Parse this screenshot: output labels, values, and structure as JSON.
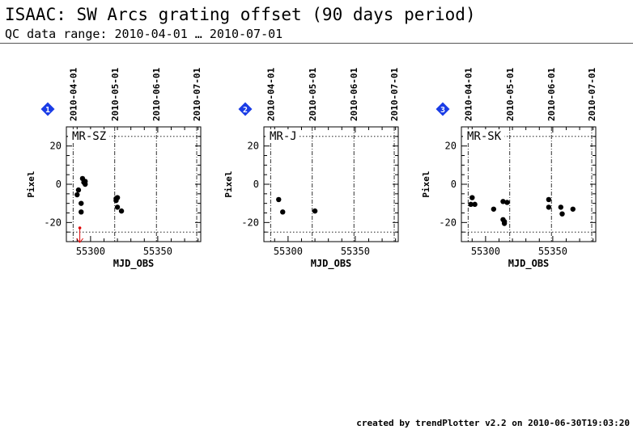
{
  "header": {
    "title": "ISAAC: SW Arcs grating offset (90 days period)",
    "subtitle": "QC data range: 2010-04-01 … 2010-07-01"
  },
  "footer": "created by trendPlotter v2.2 on 2010-06-30T19:03:20",
  "colors": {
    "marker_badge": "#1a3ce6",
    "outlier": "#dd0000",
    "points": "#000000"
  },
  "chart_data": [
    {
      "type": "scatter",
      "index_label": "1",
      "panel_label": "MR-SZ",
      "xlabel": "MJD_OBS",
      "ylabel": "Pixel",
      "xlim": [
        55282,
        55382
      ],
      "ylim": [
        -30,
        30
      ],
      "x_ticks": [
        "55300",
        "55350"
      ],
      "y_ticks": [
        "20",
        "0",
        "-20"
      ],
      "top_date_labels": [
        "2010-04-01",
        "2010-05-01",
        "2010-06-01",
        "2010-07-01"
      ],
      "date_vlines": [
        55287,
        55318,
        55349,
        55379
      ],
      "ref_hlines": [
        25,
        -25
      ],
      "points": [
        {
          "x": 55290,
          "y": -5.5
        },
        {
          "x": 55291,
          "y": -3
        },
        {
          "x": 55293,
          "y": -10
        },
        {
          "x": 55293,
          "y": -14.5
        },
        {
          "x": 55294,
          "y": 3
        },
        {
          "x": 55295,
          "y": 1
        },
        {
          "x": 55296,
          "y": 0
        },
        {
          "x": 55296,
          "y": 1.5
        },
        {
          "x": 55319,
          "y": -7.5
        },
        {
          "x": 55319,
          "y": -8.5
        },
        {
          "x": 55320,
          "y": -7
        },
        {
          "x": 55320,
          "y": -12
        },
        {
          "x": 55323,
          "y": -14
        }
      ],
      "outliers": [
        {
          "x": 55292,
          "y": -30,
          "direction": "down"
        }
      ]
    },
    {
      "type": "scatter",
      "index_label": "2",
      "panel_label": "MR-J",
      "xlabel": "MJD_OBS",
      "ylabel": "Pixel",
      "xlim": [
        55282,
        55382
      ],
      "ylim": [
        -30,
        30
      ],
      "x_ticks": [
        "55300",
        "55350"
      ],
      "y_ticks": [
        "20",
        "0",
        "-20"
      ],
      "top_date_labels": [
        "2010-04-01",
        "2010-05-01",
        "2010-06-01",
        "2010-07-01"
      ],
      "date_vlines": [
        55287,
        55318,
        55349,
        55379
      ],
      "ref_hlines": [
        25,
        -25
      ],
      "points": [
        {
          "x": 55293,
          "y": -8
        },
        {
          "x": 55296,
          "y": -14.5
        },
        {
          "x": 55320,
          "y": -14
        }
      ],
      "outliers": []
    },
    {
      "type": "scatter",
      "index_label": "3",
      "panel_label": "MR-SK",
      "xlabel": "MJD_OBS",
      "ylabel": "Pixel",
      "xlim": [
        55282,
        55382
      ],
      "ylim": [
        -30,
        30
      ],
      "x_ticks": [
        "55300",
        "55350"
      ],
      "y_ticks": [
        "20",
        "0",
        "-20"
      ],
      "top_date_labels": [
        "2010-04-01",
        "2010-05-01",
        "2010-06-01",
        "2010-07-01"
      ],
      "date_vlines": [
        55287,
        55318,
        55349,
        55379
      ],
      "ref_hlines": [
        25,
        -25
      ],
      "points": [
        {
          "x": 55289,
          "y": -10.5
        },
        {
          "x": 55290,
          "y": -7
        },
        {
          "x": 55292,
          "y": -10.5
        },
        {
          "x": 55306,
          "y": -13
        },
        {
          "x": 55313,
          "y": -9
        },
        {
          "x": 55313,
          "y": -18.5
        },
        {
          "x": 55314,
          "y": -19.5
        },
        {
          "x": 55314,
          "y": -20.5
        },
        {
          "x": 55316,
          "y": -9.5
        },
        {
          "x": 55347,
          "y": -8
        },
        {
          "x": 55347,
          "y": -12
        },
        {
          "x": 55356,
          "y": -12
        },
        {
          "x": 55357,
          "y": -15.5
        },
        {
          "x": 55365,
          "y": -13
        }
      ],
      "outliers": []
    }
  ]
}
